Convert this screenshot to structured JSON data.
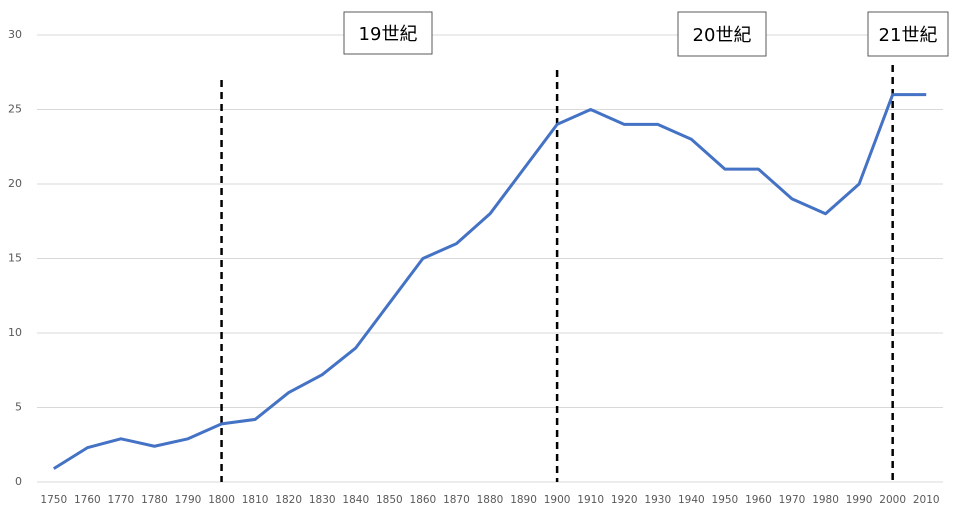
{
  "chart_data": {
    "type": "line",
    "x": [
      1750,
      1760,
      1770,
      1780,
      1790,
      1800,
      1810,
      1820,
      1830,
      1840,
      1850,
      1860,
      1870,
      1880,
      1890,
      1900,
      1910,
      1920,
      1930,
      1940,
      1950,
      1960,
      1970,
      1980,
      1990,
      2000,
      2010
    ],
    "values": [
      0.9,
      2.3,
      2.9,
      2.4,
      2.9,
      3.9,
      4.2,
      6,
      7.2,
      9,
      12,
      15,
      16,
      18,
      21,
      24,
      25,
      24,
      24,
      23,
      21,
      21,
      19,
      18,
      20,
      26,
      26
    ],
    "color": "#4472c4",
    "xlim": [
      1745,
      2015
    ],
    "ylim": [
      0,
      30
    ],
    "yticks": [
      0,
      5,
      10,
      15,
      20,
      25,
      30
    ],
    "grid": true,
    "vlines": [
      1800,
      1900,
      2000
    ],
    "annotations": [
      "19世紀",
      "20世紀",
      "21世紀"
    ]
  }
}
